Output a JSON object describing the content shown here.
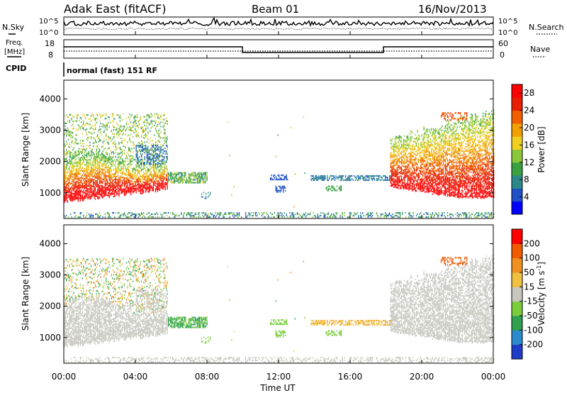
{
  "header": {
    "site": "Adak East (fitACF)",
    "beam": "Beam 01",
    "date": "16/Nov/2013"
  },
  "noise_panel": {
    "left_label": "N.Sky",
    "right_label": "N.Search",
    "tick_top": "10^5",
    "tick_bottom": "10^0"
  },
  "freq_panel": {
    "left_label_1": "Freq.",
    "left_label_2": "[MHz]",
    "left_ticks": [
      "18",
      "8"
    ],
    "right_label": "Nave",
    "right_ticks": [
      "60",
      "0"
    ]
  },
  "cpid": {
    "label": "CPID",
    "mode": "normal (fast) 151 RF"
  },
  "chart_data": [
    {
      "type": "heatmap",
      "quantity": "Power",
      "ylabel": "Slant Range [km]",
      "xlabel": "Time UT",
      "xlim": [
        0,
        24
      ],
      "ylim": [
        180,
        4600
      ],
      "yticks": [
        "4000",
        "3000",
        "2000",
        "1000"
      ],
      "colorbar": {
        "label": "Power [dB]",
        "ticks": [
          "28",
          "24",
          "20",
          "16",
          "12",
          "8",
          "4"
        ],
        "range": [
          0,
          30
        ],
        "colors": [
          "#0000ff",
          "#1e50c8",
          "#2a8a8a",
          "#3aa040",
          "#8ac83a",
          "#f0d020",
          "#f0a000",
          "#f06000",
          "#e82000",
          "#ff0000"
        ]
      }
    },
    {
      "type": "heatmap",
      "quantity": "Velocity",
      "ylabel": "Slant Range [km]",
      "xlabel": "Time UT",
      "xlim": [
        0,
        24
      ],
      "ylim": [
        180,
        4600
      ],
      "yticks": [
        "4000",
        "3000",
        "2000",
        "1000"
      ],
      "colorbar": {
        "label_main": "Velocity [m s",
        "label_sup": "-1",
        "label_end": "]",
        "ticks": [
          "200",
          "100",
          "50",
          "15",
          "-15",
          "-50",
          "-100",
          "-200"
        ],
        "colors": [
          "#1e3cc8",
          "#2a8acc",
          "#2ea050",
          "#7acc3a",
          "#c8c8c0",
          "#f0c040",
          "#f09020",
          "#f05a00",
          "#ff0000"
        ]
      }
    }
  ],
  "time_axis": {
    "ticks": [
      "00:00",
      "04:00",
      "08:00",
      "12:00",
      "16:00",
      "20:00",
      "00:00"
    ],
    "label": "Time UT"
  }
}
